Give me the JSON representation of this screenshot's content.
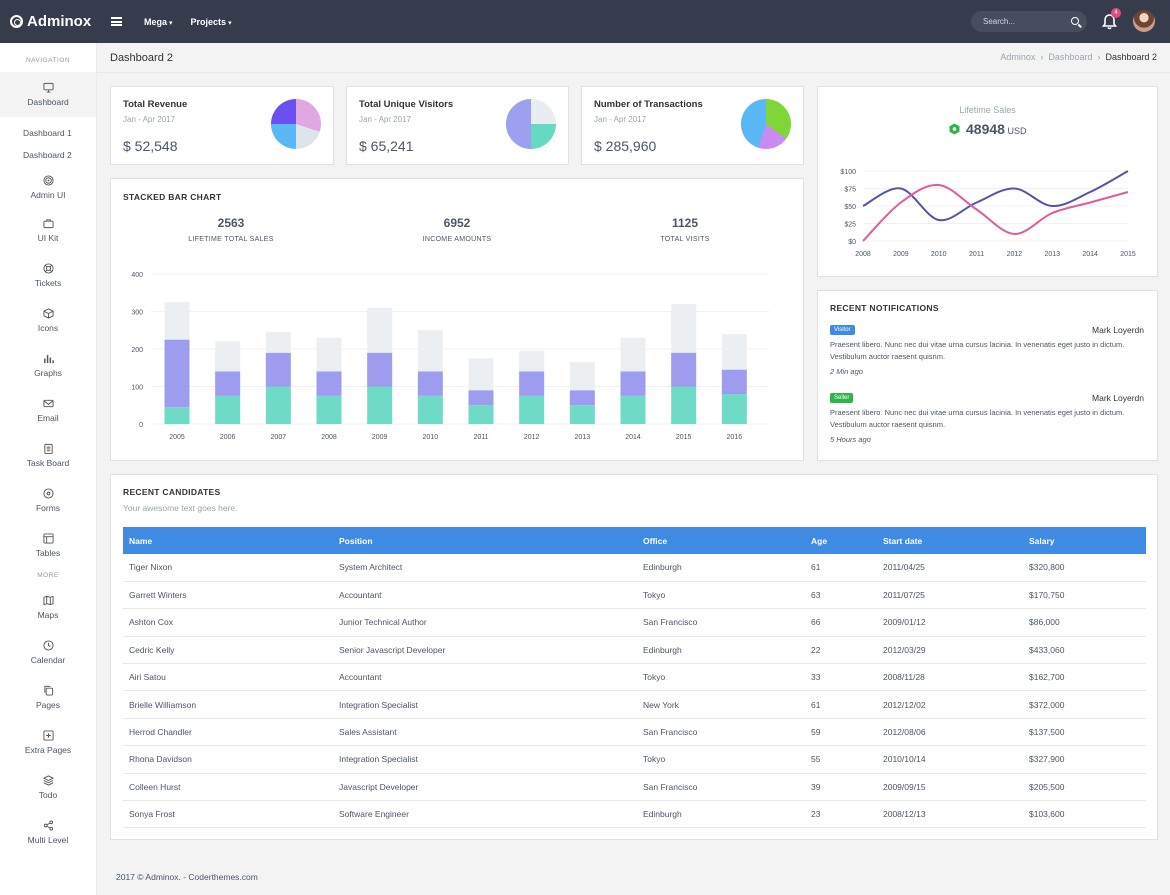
{
  "brand": {
    "name": "Adminox"
  },
  "topnav": {
    "items": [
      {
        "label": "Mega"
      },
      {
        "label": "Projects"
      }
    ],
    "search_placeholder": "Search...",
    "notification_count": "4"
  },
  "sidebar": {
    "section_navigation": "NAVIGATION",
    "section_more": "MORE",
    "items": [
      {
        "label": "Dashboard",
        "icon": "monitor-icon"
      },
      {
        "label": "Admin UI",
        "icon": "target-icon"
      },
      {
        "label": "UI Kit",
        "icon": "briefcase-icon"
      },
      {
        "label": "Tickets",
        "icon": "lifebuoy-icon"
      },
      {
        "label": "Icons",
        "icon": "box-icon"
      },
      {
        "label": "Graphs",
        "icon": "bar-chart-icon"
      },
      {
        "label": "Email",
        "icon": "mail-icon"
      },
      {
        "label": "Task Board",
        "icon": "clipboard-icon"
      },
      {
        "label": "Forms",
        "icon": "disc-icon"
      },
      {
        "label": "Tables",
        "icon": "layout-icon"
      },
      {
        "label": "Maps",
        "icon": "map-icon"
      },
      {
        "label": "Calendar",
        "icon": "clock-icon"
      },
      {
        "label": "Pages",
        "icon": "copy-icon"
      },
      {
        "label": "Extra Pages",
        "icon": "plus-square-icon"
      },
      {
        "label": "Todo",
        "icon": "layers-icon"
      },
      {
        "label": "Multi Level",
        "icon": "share-icon"
      }
    ],
    "sub_items": [
      {
        "label": "Dashboard 1"
      },
      {
        "label": "Dashboard 2"
      }
    ]
  },
  "page": {
    "title": "Dashboard 2",
    "breadcrumb": [
      "Adminox",
      "Dashboard",
      "Dashboard 2"
    ]
  },
  "stats": [
    {
      "label": "Total Revenue",
      "period": "Jan - Apr 2017",
      "value": "$ 52,548"
    },
    {
      "label": "Total Unique Visitors",
      "period": "Jan - Apr 2017",
      "value": "$ 65,241"
    },
    {
      "label": "Number of Transactions",
      "period": "Jan - Apr 2017",
      "value": "$ 285,960"
    }
  ],
  "stacked": {
    "title": "STACKED BAR CHART",
    "kpis": [
      {
        "value": "2563",
        "label": "LIFETIME TOTAL SALES"
      },
      {
        "value": "6952",
        "label": "INCOME AMOUNTS"
      },
      {
        "value": "1125",
        "label": "TOTAL VISITS"
      }
    ]
  },
  "lifetime": {
    "title": "Lifetime Sales",
    "value": "48948",
    "unit": "USD"
  },
  "notifications": {
    "title": "RECENT NOTIFICATIONS",
    "items": [
      {
        "badge": "Visitor",
        "badge_color": "#3f8ae2",
        "name": "Mark Loyerdn",
        "text": "Praesent libero. Nunc nec dui vitae urna cursus lacinia. In venenatis eget justo in dictum. Vestibulum auctor raesent quisnm.",
        "time": "2 Min ago"
      },
      {
        "badge": "Seller",
        "badge_color": "#2fb34a",
        "name": "Mark Loyerdn",
        "text": "Praesent libero. Nunc nec dui vitae urna cursus lacinia. In venenatis eget justo in dictum. Vestibulum auctor raesent quisnm.",
        "time": "5 Hours ago"
      }
    ]
  },
  "candidates": {
    "title": "RECENT CANDIDATES",
    "subtitle": "Your awesome text goes here.",
    "columns": [
      "Name",
      "Position",
      "Office",
      "Age",
      "Start date",
      "Salary"
    ],
    "rows": [
      [
        "Tiger Nixon",
        "System Architect",
        "Edinburgh",
        "61",
        "2011/04/25",
        "$320,800"
      ],
      [
        "Garrett Winters",
        "Accountant",
        "Tokyo",
        "63",
        "2011/07/25",
        "$170,750"
      ],
      [
        "Ashton Cox",
        "Junior Technical Author",
        "San Francisco",
        "66",
        "2009/01/12",
        "$86,000"
      ],
      [
        "Cedric Kelly",
        "Senior Javascript Developer",
        "Edinburgh",
        "22",
        "2012/03/29",
        "$433,060"
      ],
      [
        "Airi Satou",
        "Accountant",
        "Tokyo",
        "33",
        "2008/11/28",
        "$162,700"
      ],
      [
        "Brielle Williamson",
        "Integration Specialist",
        "New York",
        "61",
        "2012/12/02",
        "$372,000"
      ],
      [
        "Herrod Chandler",
        "Sales Assistant",
        "San Francisco",
        "59",
        "2012/08/06",
        "$137,500"
      ],
      [
        "Rhona Davidson",
        "Integration Specialist",
        "Tokyo",
        "55",
        "2010/10/14",
        "$327,900"
      ],
      [
        "Colleen Hurst",
        "Javascript Developer",
        "San Francisco",
        "39",
        "2009/09/15",
        "$205,500"
      ],
      [
        "Sonya Frost",
        "Software Engineer",
        "Edinburgh",
        "23",
        "2008/12/13",
        "$103,600"
      ]
    ]
  },
  "footer": {
    "text": "2017 © Adminox. - Coderthemes.com"
  },
  "chart_data": [
    {
      "type": "bar",
      "stacked": true,
      "categories": [
        "2005",
        "2006",
        "2007",
        "2008",
        "2009",
        "2010",
        "2011",
        "2012",
        "2013",
        "2014",
        "2015",
        "2016"
      ],
      "series": [
        {
          "color": "#6fdbc6",
          "values": [
            45,
            75,
            100,
            75,
            100,
            75,
            50,
            75,
            50,
            75,
            100,
            80
          ]
        },
        {
          "color": "#9d9cee",
          "values": [
            180,
            65,
            90,
            65,
            90,
            65,
            40,
            65,
            40,
            65,
            90,
            65
          ]
        },
        {
          "color": "#ebeff2",
          "values": [
            100,
            80,
            55,
            90,
            120,
            110,
            85,
            55,
            75,
            90,
            130,
            95
          ]
        }
      ],
      "ylim": [
        0,
        400
      ],
      "yticks": [
        0,
        100,
        200,
        300,
        400
      ],
      "grid": true
    },
    {
      "type": "line",
      "title": "Lifetime Sales",
      "x": [
        "2008",
        "2009",
        "2010",
        "2011",
        "2012",
        "2013",
        "2014",
        "2015"
      ],
      "series": [
        {
          "color": "#5553a8",
          "values": [
            50,
            75,
            30,
            55,
            75,
            50,
            70,
            100
          ]
        },
        {
          "color": "#df5c9b",
          "values": [
            0,
            55,
            80,
            45,
            10,
            40,
            55,
            70
          ]
        }
      ],
      "ylim": [
        0,
        100
      ],
      "yticks": [
        "$0",
        "$25",
        "$50",
        "$75",
        "$100"
      ]
    },
    {
      "type": "pie",
      "name": "Total Revenue",
      "values": [
        30,
        20,
        25,
        25
      ],
      "colors": [
        "#e0a7e3",
        "#dde4ea",
        "#59b8f5",
        "#6b4ff0"
      ]
    },
    {
      "type": "pie",
      "name": "Total Unique Visitors",
      "values": [
        25,
        25,
        50
      ],
      "colors": [
        "#e8edf2",
        "#65d9c1",
        "#9ca0ee"
      ]
    },
    {
      "type": "pie",
      "name": "Number of Transactions",
      "values": [
        35,
        20,
        45
      ],
      "colors": [
        "#7fd636",
        "#c98bf2",
        "#59b8f5"
      ]
    }
  ]
}
